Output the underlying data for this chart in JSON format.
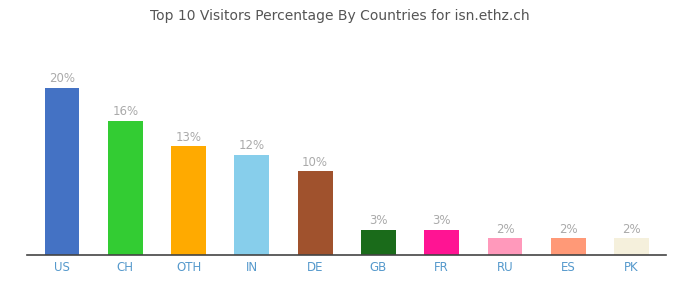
{
  "categories": [
    "US",
    "CH",
    "OTH",
    "IN",
    "DE",
    "GB",
    "FR",
    "RU",
    "ES",
    "PK"
  ],
  "values": [
    20,
    16,
    13,
    12,
    10,
    3,
    3,
    2,
    2,
    2
  ],
  "bar_colors": [
    "#4472c4",
    "#33cc33",
    "#ffaa00",
    "#87ceeb",
    "#a0522d",
    "#1a6b1a",
    "#ff1493",
    "#ff99bb",
    "#ff9977",
    "#f5f0dc"
  ],
  "title": "Top 10 Visitors Percentage By Countries for isn.ethz.ch",
  "ylim": [
    0,
    24
  ],
  "label_fontsize": 8.5,
  "title_fontsize": 10,
  "tick_fontsize": 8.5,
  "label_color": "#aaaaaa",
  "tick_color": "#5599cc",
  "background_color": "#ffffff",
  "bar_width": 0.55
}
